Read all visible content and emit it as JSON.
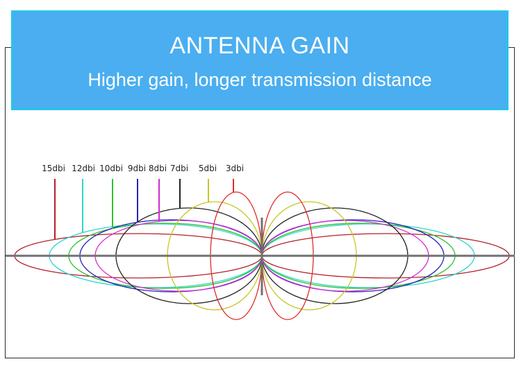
{
  "banner": {
    "title": "ANTENNA GAIN",
    "subtitle": "Higher gain, longer transmission distance"
  },
  "colors": {
    "banner_fill": "#4aaef0",
    "banner_border": "#28c3ee",
    "axis": "#707070"
  },
  "patterns": [
    {
      "label": "15dbi",
      "color": "#b3202a"
    },
    {
      "label": "12dbi",
      "color": "#2fd3cc"
    },
    {
      "label": "10dbi",
      "color": "#2ec22e"
    },
    {
      "label": "9dbi",
      "color": "#2424b8"
    },
    {
      "label": "8dbi",
      "color": "#d22ed2"
    },
    {
      "label": "7dbi",
      "color": "#222222"
    },
    {
      "label": "5dbi",
      "color": "#c6c62a"
    },
    {
      "label": "3dbi",
      "color": "#e02a2a"
    }
  ]
}
